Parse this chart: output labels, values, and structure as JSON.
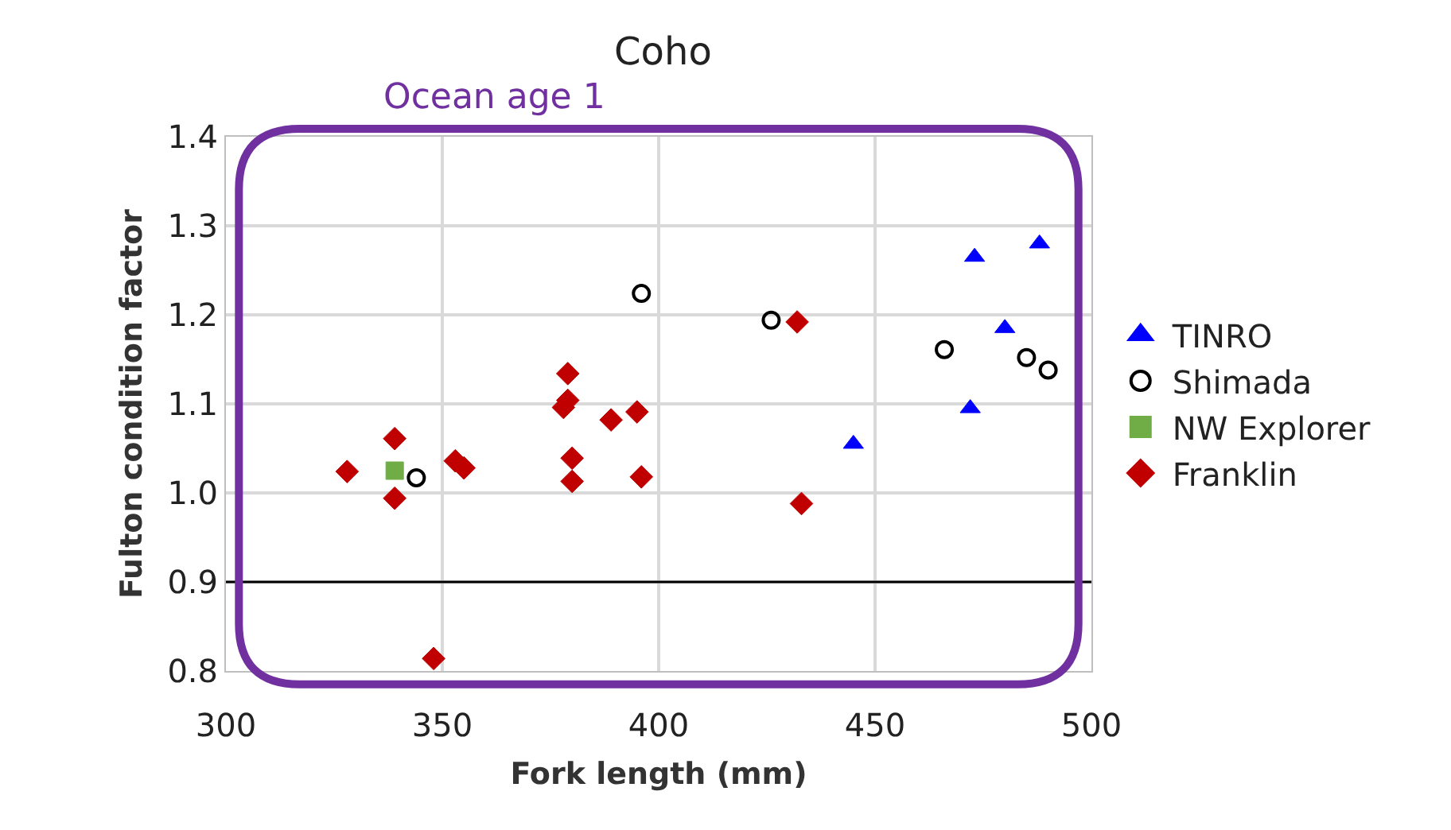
{
  "chart_data": {
    "type": "scatter",
    "title": "Coho",
    "xlabel": "Fork length (mm)",
    "ylabel": "Fulton condition factor",
    "annotations": [
      "Ocean age 1"
    ],
    "xlim": [
      300,
      500
    ],
    "xticks": [
      300,
      350,
      400,
      450,
      500
    ],
    "ylim": [
      0.8,
      1.4
    ],
    "yticks": [
      0.8,
      0.9,
      {
        "value": 1.0,
        "label": "1.0"
      },
      1.1,
      1.2,
      1.3,
      1.4
    ],
    "grid": true,
    "legend": "right",
    "ref_lines": [
      {
        "axis": "y",
        "value": 0.9,
        "color": "#000000"
      }
    ],
    "series": [
      {
        "name": "TINRO",
        "color": "#0000ff",
        "marker": "triangle",
        "x": [
          473,
          488,
          480,
          472,
          445
        ],
        "values": [
          1.265,
          1.28,
          1.185,
          1.095,
          1.055
        ]
      },
      {
        "name": "Shimada",
        "color": "#000000",
        "marker": "circle",
        "x": [
          396,
          426,
          466,
          485,
          490,
          344
        ],
        "values": [
          1.224,
          1.194,
          1.161,
          1.152,
          1.138,
          1.017
        ]
      },
      {
        "name": "NW Explorer",
        "color": "#70ad47",
        "marker": "square",
        "x": [
          339
        ],
        "values": [
          1.025
        ]
      },
      {
        "name": "Franklin",
        "color": "#c00000",
        "marker": "diamond",
        "x": [
          328,
          339,
          339,
          353,
          355,
          348,
          379,
          378,
          379,
          380,
          380,
          389,
          395,
          396,
          432,
          433
        ],
        "values": [
          1.024,
          1.061,
          0.994,
          1.036,
          1.028,
          0.814,
          1.134,
          1.096,
          1.104,
          1.039,
          1.013,
          1.082,
          1.091,
          1.018,
          1.192,
          0.988
        ]
      }
    ]
  }
}
